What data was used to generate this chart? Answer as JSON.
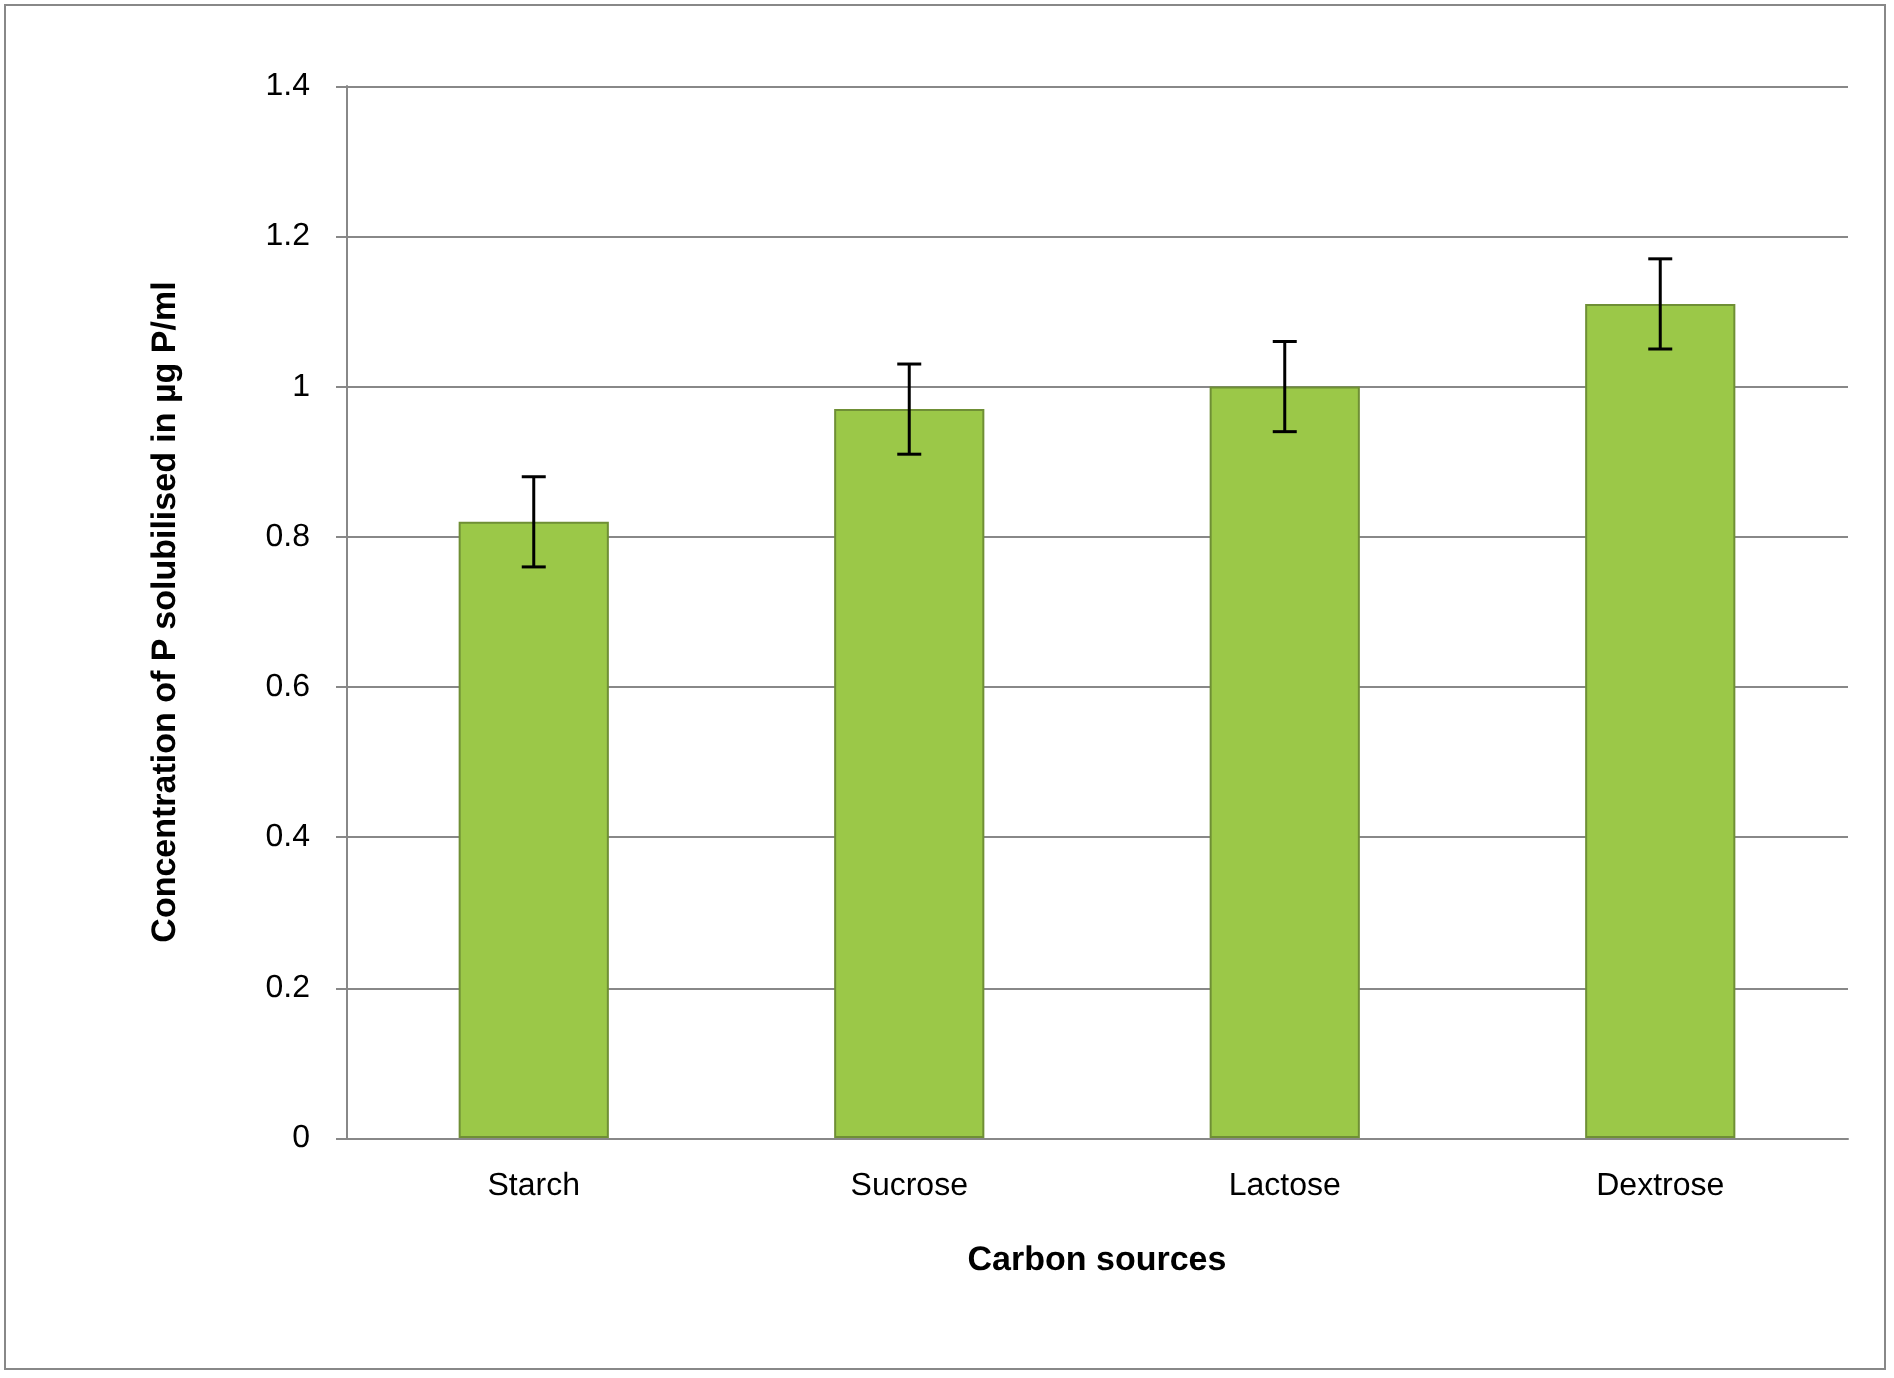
{
  "chart_data": {
    "type": "bar",
    "xlabel": "Carbon sources",
    "ylabel": "Concentration of P solubilised in µg P/ml",
    "categories": [
      "Starch",
      "Sucrose",
      "Lactose",
      "Dextrose"
    ],
    "values": [
      0.82,
      0.97,
      1.0,
      1.11
    ],
    "errors": [
      0.06,
      0.06,
      0.06,
      0.06
    ],
    "color": "#9bc848",
    "ylim": [
      0,
      1.4
    ],
    "yticks": [
      0,
      0.2,
      0.4,
      0.6,
      0.8,
      1,
      1.2,
      1.4
    ],
    "grid": "y"
  }
}
